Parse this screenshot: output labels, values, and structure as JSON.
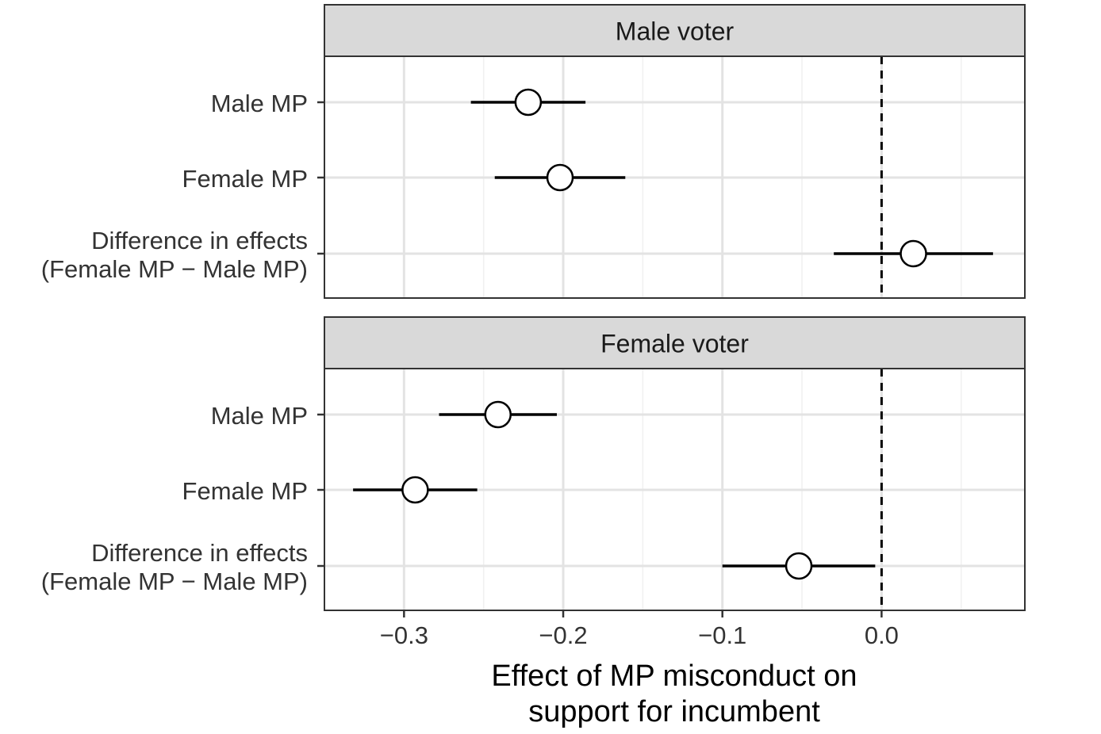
{
  "chart_data": {
    "type": "scatter",
    "subtype": "coefficient-plot-with-confidence-intervals",
    "xlabel_lines": [
      "Effect of MP misconduct on",
      "support for incumbent"
    ],
    "xlim": [
      -0.35,
      0.09
    ],
    "x_ticks": [
      -0.3,
      -0.2,
      -0.1,
      0.0
    ],
    "x_tick_labels": [
      "−0.3",
      "−0.2",
      "−0.1",
      "0.0"
    ],
    "reference_line": 0.0,
    "grid": true,
    "panels": [
      {
        "title": "Male voter",
        "rows": [
          {
            "label_lines": [
              "Male MP"
            ],
            "estimate": -0.222,
            "ci_low": -0.258,
            "ci_high": -0.186
          },
          {
            "label_lines": [
              "Female MP"
            ],
            "estimate": -0.202,
            "ci_low": -0.243,
            "ci_high": -0.161
          },
          {
            "label_lines": [
              "Difference in effects",
              "(Female MP − Male MP)"
            ],
            "estimate": 0.02,
            "ci_low": -0.03,
            "ci_high": 0.07
          }
        ]
      },
      {
        "title": "Female voter",
        "rows": [
          {
            "label_lines": [
              "Male MP"
            ],
            "estimate": -0.241,
            "ci_low": -0.278,
            "ci_high": -0.204
          },
          {
            "label_lines": [
              "Female MP"
            ],
            "estimate": -0.293,
            "ci_low": -0.332,
            "ci_high": -0.254
          },
          {
            "label_lines": [
              "Difference in effects",
              "(Female MP − Male MP)"
            ],
            "estimate": -0.052,
            "ci_low": -0.1,
            "ci_high": -0.004
          }
        ]
      }
    ]
  }
}
